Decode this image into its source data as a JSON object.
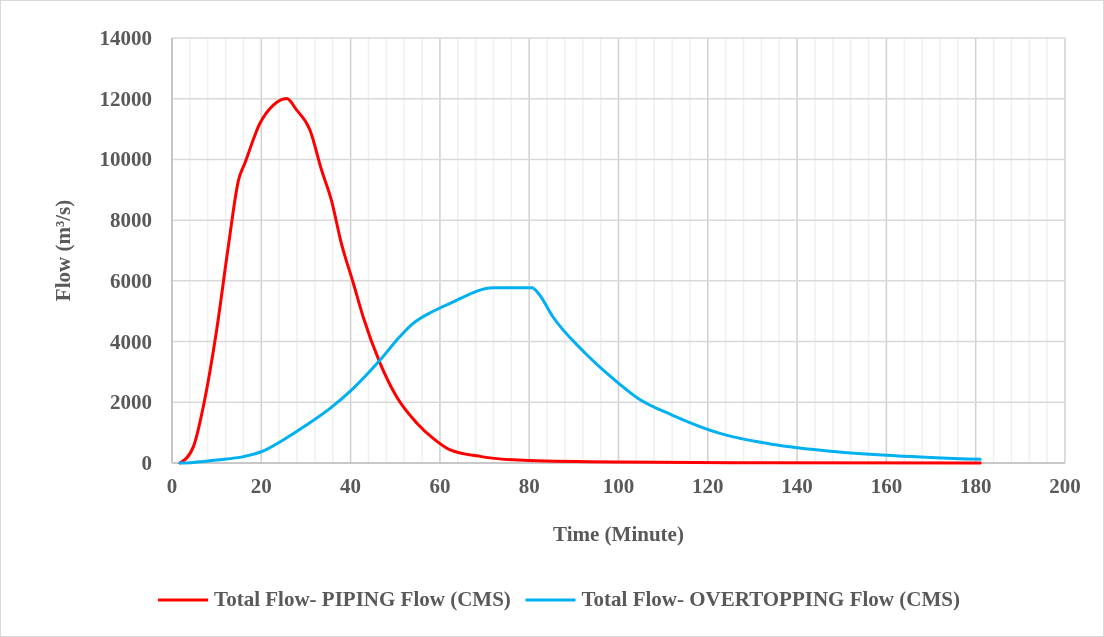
{
  "chart_data": {
    "type": "line",
    "xlabel": "Time (Minute)",
    "ylabel": "Flow (m³/s)",
    "xlim": [
      0,
      200
    ],
    "xticks": [
      0,
      20,
      40,
      60,
      80,
      100,
      120,
      140,
      160,
      180,
      200
    ],
    "ylim": [
      0,
      14000
    ],
    "yticks": [
      0,
      2000,
      4000,
      6000,
      8000,
      10000,
      12000,
      14000
    ],
    "grid": true,
    "legend": "bottom",
    "marker": "none",
    "line_style": "solid",
    "series": [
      {
        "name": "Total Flow- PIPING Flow (CMS)",
        "color": "#ff0000",
        "x": [
          1.8,
          4.8,
          7,
          10,
          12.6,
          14.9,
          16.3,
          19.7,
          22.7,
          25.7,
          27.9,
          30.9,
          33.5,
          35.7,
          37.9,
          40.6,
          42.8,
          46.6,
          50.3,
          54.8,
          58.5,
          62.3,
          69.3,
          80,
          100,
          130,
          181
        ],
        "values": [
          0,
          540,
          1850,
          4380,
          7120,
          9320,
          9870,
          11190,
          11790,
          12010,
          11630,
          10970,
          9650,
          8660,
          7250,
          5930,
          4820,
          3290,
          2180,
          1320,
          810,
          430,
          210,
          80,
          30,
          10,
          0
        ]
      },
      {
        "name": "Total Flow- OVERTOPPING Flow (CMS)",
        "color": "#00b0f0",
        "x": [
          1.8,
          4.8,
          10,
          16,
          20,
          24.9,
          30.1,
          35.4,
          40.6,
          46.6,
          51,
          54,
          58.5,
          62.3,
          72,
          80.6,
          82.3,
          85.1,
          92,
          98,
          104.5,
          112,
          123.1,
          134.3,
          148.2,
          162,
          181
        ],
        "values": [
          0,
          20,
          100,
          210,
          370,
          760,
          1250,
          1800,
          2460,
          3390,
          4160,
          4600,
          5000,
          5260,
          5770,
          5770,
          5540,
          4860,
          3700,
          2880,
          2120,
          1580,
          960,
          620,
          380,
          240,
          120
        ]
      }
    ]
  }
}
